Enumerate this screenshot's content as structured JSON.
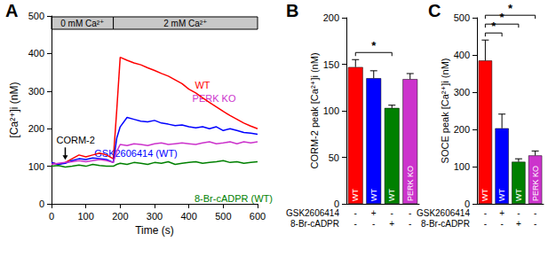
{
  "chart_data": [
    {
      "type": "line",
      "title": "A",
      "x_label": "Time (s)",
      "y_label": "[Ca²⁺]i (nM)",
      "x": [
        0,
        20,
        40,
        60,
        80,
        100,
        120,
        140,
        160,
        180,
        190,
        200,
        220,
        240,
        260,
        280,
        300,
        320,
        340,
        360,
        380,
        400,
        420,
        440,
        460,
        480,
        500,
        520,
        540,
        560,
        580,
        600
      ],
      "series": [
        {
          "name": "WT",
          "color": "#ff0000",
          "values": [
            110,
            105,
            110,
            120,
            130,
            125,
            130,
            135,
            130,
            120,
            250,
            390,
            382,
            375,
            370,
            362,
            355,
            347,
            340,
            330,
            320,
            305,
            295,
            282,
            270,
            258,
            246,
            235,
            225,
            215,
            207,
            200
          ]
        },
        {
          "name": "GSK2606414 (WT)",
          "color": "#0000ff",
          "values": [
            110,
            105,
            108,
            115,
            120,
            118,
            122,
            120,
            118,
            110,
            175,
            205,
            230,
            225,
            220,
            218,
            222,
            215,
            212,
            208,
            210,
            205,
            202,
            205,
            200,
            205,
            195,
            200,
            195,
            190,
            188,
            185
          ]
        },
        {
          "name": "PERK KO",
          "color": "#cc33cc",
          "values": [
            105,
            108,
            110,
            112,
            115,
            112,
            115,
            118,
            115,
            110,
            140,
            158,
            155,
            160,
            158,
            155,
            160,
            162,
            158,
            160,
            162,
            160,
            158,
            162,
            165,
            160,
            162,
            165,
            160,
            165,
            162,
            165
          ]
        },
        {
          "name": "8-Br-cADPR (WT)",
          "color": "#008000",
          "values": [
            100,
            102,
            98,
            100,
            103,
            100,
            105,
            102,
            100,
            100,
            105,
            108,
            105,
            110,
            108,
            105,
            110,
            108,
            112,
            105,
            108,
            110,
            112,
            108,
            110,
            112,
            115,
            110,
            112,
            108,
            110,
            112
          ]
        }
      ],
      "xlim": [
        0,
        600
      ],
      "xticks": [
        0,
        100,
        200,
        300,
        400,
        500,
        600
      ],
      "ylim": [
        0,
        500
      ],
      "yticks": [
        0,
        100,
        200,
        300,
        400,
        500
      ],
      "grid": false,
      "bands": [
        {
          "label": "0 mM Ca²⁺",
          "start": 0,
          "end": 180
        },
        {
          "label": "2 mM Ca²⁺",
          "start": 180,
          "end": 600
        }
      ],
      "annotations": [
        {
          "text": "CORM-2",
          "x": 40
        }
      ]
    },
    {
      "type": "bar",
      "title": "B",
      "y_label": "CORM-2 peak [Ca²⁺]i (nM)",
      "categories": [
        "WT",
        "WT",
        "WT",
        "PERK KO"
      ],
      "values": [
        147,
        135,
        103,
        134
      ],
      "errors": [
        8,
        8,
        3,
        6
      ],
      "colors": [
        "#ff0000",
        "#0000ff",
        "#008000",
        "#cc33cc"
      ],
      "conditions": [
        {
          "name": "GSK2606414",
          "values": [
            "-",
            "+",
            "-",
            "-"
          ]
        },
        {
          "name": "8-Br-cADPR",
          "values": [
            "-",
            "-",
            "+",
            "-"
          ]
        }
      ],
      "significance": [
        {
          "from": 0,
          "to": 2,
          "label": "*"
        }
      ],
      "ylim": [
        0,
        200
      ],
      "yticks": [
        0,
        50,
        100,
        150,
        200
      ],
      "grid": false
    },
    {
      "type": "bar",
      "title": "C",
      "y_label": "SOCE peak [Ca²⁺]i (nM)",
      "categories": [
        "WT",
        "WT",
        "WT",
        "PERK KO"
      ],
      "values": [
        385,
        203,
        113,
        130
      ],
      "errors": [
        55,
        38,
        8,
        12
      ],
      "colors": [
        "#ff0000",
        "#0000ff",
        "#008000",
        "#cc33cc"
      ],
      "conditions": [
        {
          "name": "GSK2606414",
          "values": [
            "-",
            "+",
            "-",
            "-"
          ]
        },
        {
          "name": "8-Br-cADPR",
          "values": [
            "-",
            "-",
            "+",
            "-"
          ]
        }
      ],
      "significance": [
        {
          "from": 0,
          "to": 1,
          "label": "*"
        },
        {
          "from": 0,
          "to": 2,
          "label": "*"
        },
        {
          "from": 0,
          "to": 3,
          "label": "*"
        }
      ],
      "ylim": [
        0,
        500
      ],
      "yticks": [
        0,
        100,
        200,
        300,
        400,
        500
      ],
      "grid": false
    }
  ]
}
